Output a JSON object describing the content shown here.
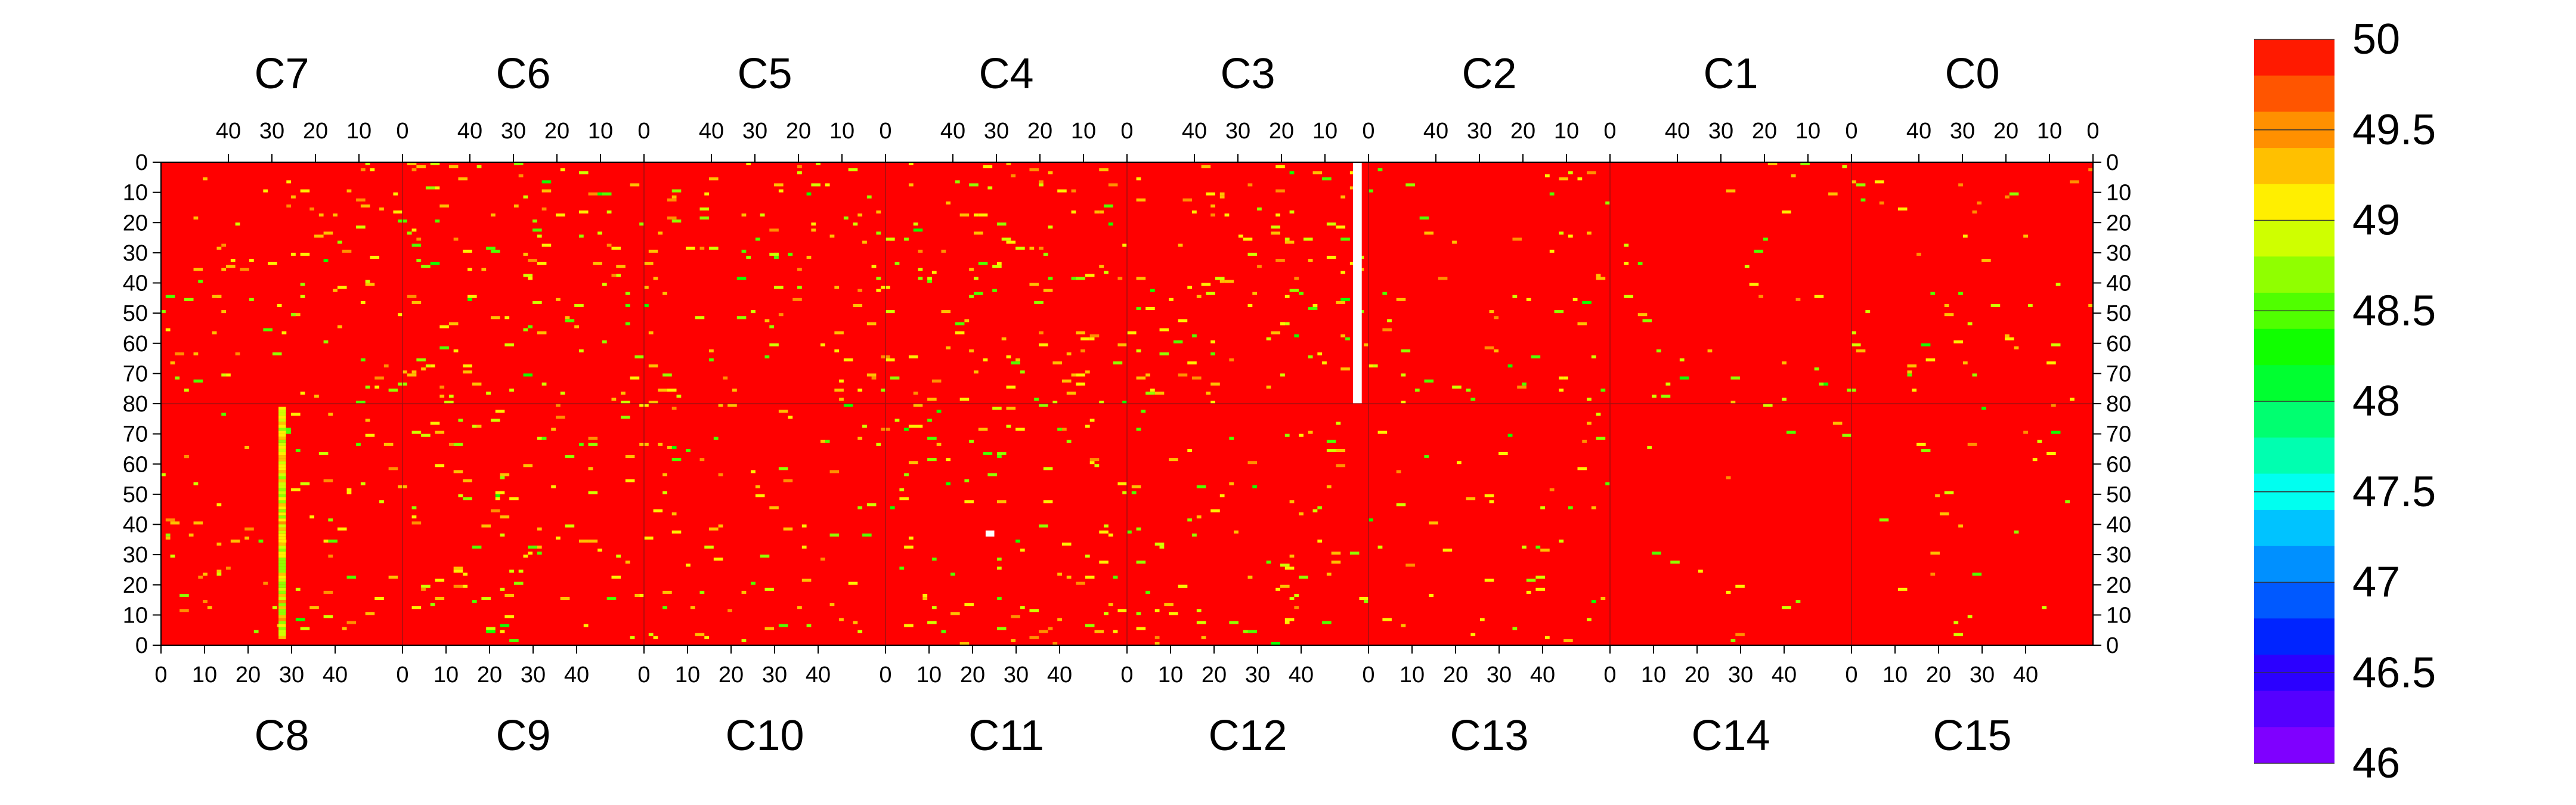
{
  "chart_data": {
    "type": "heatmap",
    "title": "",
    "xlabel": "",
    "ylabel": "",
    "value_range": [
      46,
      50
    ],
    "default_value": 50,
    "colormap": {
      "bins": [
        {
          "from": 46.0,
          "to": 46.2,
          "color": "#7f00ff"
        },
        {
          "from": 46.2,
          "to": 46.4,
          "color": "#5500ff"
        },
        {
          "from": 46.4,
          "to": 46.6,
          "color": "#2b00ff"
        },
        {
          "from": 46.6,
          "to": 46.8,
          "color": "#0024ff"
        },
        {
          "from": 46.8,
          "to": 47.0,
          "color": "#0059ff"
        },
        {
          "from": 47.0,
          "to": 47.2,
          "color": "#0090ff"
        },
        {
          "from": 47.2,
          "to": 47.4,
          "color": "#00c3ff"
        },
        {
          "from": 47.4,
          "to": 47.6,
          "color": "#00fff0"
        },
        {
          "from": 47.6,
          "to": 47.8,
          "color": "#00ffb0"
        },
        {
          "from": 47.8,
          "to": 48.0,
          "color": "#00ff70"
        },
        {
          "from": 48.0,
          "to": 48.2,
          "color": "#00ff30"
        },
        {
          "from": 48.2,
          "to": 48.4,
          "color": "#10ff00"
        },
        {
          "from": 48.4,
          "to": 48.6,
          "color": "#50ff00"
        },
        {
          "from": 48.6,
          "to": 48.8,
          "color": "#90ff00"
        },
        {
          "from": 48.8,
          "to": 49.0,
          "color": "#cfff00"
        },
        {
          "from": 49.0,
          "to": 49.2,
          "color": "#ffef00"
        },
        {
          "from": 49.2,
          "to": 49.4,
          "color": "#ffc000"
        },
        {
          "from": 49.4,
          "to": 49.6,
          "color": "#ff9000"
        },
        {
          "from": 49.6,
          "to": 49.8,
          "color": "#ff5500"
        },
        {
          "from": 49.8,
          "to": 50.0,
          "color": "#ff1a00"
        }
      ],
      "background_color": "#ff0000",
      "colorbar_ticks": [
        "50",
        "49.5",
        "49",
        "48.5",
        "48",
        "47.5",
        "47",
        "46.5",
        "46"
      ]
    },
    "chips_top": [
      "C7",
      "C6",
      "C5",
      "C4",
      "C3",
      "C2",
      "C1",
      "C0"
    ],
    "chips_bottom": [
      "C8",
      "C9",
      "C10",
      "C11",
      "C12",
      "C13",
      "C14",
      "C15"
    ],
    "top_tick_labels": [
      "40",
      "30",
      "20",
      "10",
      "0"
    ],
    "bottom_tick_labels": [
      "0",
      "10",
      "20",
      "30",
      "40"
    ],
    "top_row_tick_labels": [
      "0",
      "10",
      "20",
      "30",
      "40",
      "50",
      "60",
      "70",
      "80"
    ],
    "bottom_row_tick_labels": [
      "80",
      "70",
      "60",
      "50",
      "40",
      "30",
      "20",
      "10",
      "0"
    ],
    "chip_columns": 52,
    "chip_rows": 80,
    "masked_regions": [
      {
        "chip": "C3",
        "cols": [
          1,
          2
        ],
        "rows": [
          0,
          79
        ]
      },
      {
        "chip": "C11",
        "cols": [
          23,
          24
        ],
        "rows": [
          36,
          37
        ]
      }
    ],
    "hot_column": {
      "chip": "C8",
      "col": 27,
      "rows": [
        2,
        78
      ],
      "values_range": [
        48.6,
        49.5
      ]
    },
    "sparse_pixels": {
      "C7": 85,
      "C6": 110,
      "C5": 95,
      "C4": 110,
      "C3": 105,
      "C2": 55,
      "C1": 35,
      "C0": 45,
      "C8": 70,
      "C9": 95,
      "C10": 70,
      "C11": 90,
      "C12": 75,
      "C13": 45,
      "C14": 15,
      "C15": 25
    },
    "sparse_value_range": [
      48.2,
      49.5
    ]
  }
}
